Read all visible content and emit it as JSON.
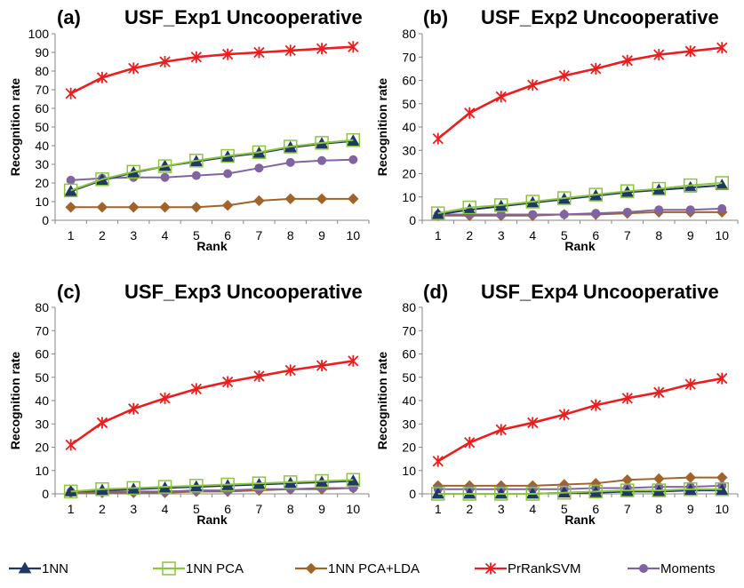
{
  "colors": {
    "1NN": "#1f3864",
    "1NN PCA": "#8cc63f",
    "1NN PCA+LDA": "#a0642a",
    "PrRankSVM": "#ee1c1c",
    "Moments": "#8064a2"
  },
  "legend": [
    {
      "name": "1NN",
      "marker": "triangle"
    },
    {
      "name": "1NN PCA",
      "marker": "square-open"
    },
    {
      "name": "1NN PCA+LDA",
      "marker": "diamond"
    },
    {
      "name": "PrRankSVM",
      "marker": "star"
    },
    {
      "name": "Moments",
      "marker": "circle"
    }
  ],
  "chart_data": [
    {
      "type": "line",
      "panel_label": "(a)",
      "title": "USF_Exp1 Uncooperative",
      "xlabel": "Rank",
      "ylabel": "Recognition rate",
      "x": [
        1,
        2,
        3,
        4,
        5,
        6,
        7,
        8,
        9,
        10
      ],
      "ylim": [
        0,
        100
      ],
      "yticks": [
        0,
        10,
        20,
        30,
        40,
        50,
        60,
        70,
        80,
        90,
        100
      ],
      "series": [
        {
          "name": "1NN",
          "values": [
            15.5,
            21.5,
            25.5,
            29,
            31.5,
            34,
            36,
            39,
            41,
            42.5
          ]
        },
        {
          "name": "1NN PCA",
          "values": [
            16,
            22,
            26,
            29,
            32,
            34.5,
            36.5,
            39.5,
            41.5,
            43
          ]
        },
        {
          "name": "1NN PCA+LDA",
          "values": [
            7,
            7,
            7,
            7,
            7,
            8,
            10.5,
            11.5,
            11.5,
            11.5
          ]
        },
        {
          "name": "PrRankSVM",
          "values": [
            68,
            76.5,
            81.5,
            85,
            87.5,
            89,
            90,
            91,
            92,
            93
          ]
        },
        {
          "name": "Moments",
          "values": [
            21.5,
            22.5,
            23,
            23,
            24,
            25,
            28,
            31,
            32,
            32.5
          ]
        }
      ]
    },
    {
      "type": "line",
      "panel_label": "(b)",
      "title": "USF_Exp2 Uncooperative",
      "xlabel": "Rank",
      "ylabel": "Recognition rate",
      "x": [
        1,
        2,
        3,
        4,
        5,
        6,
        7,
        8,
        9,
        10
      ],
      "ylim": [
        0,
        80
      ],
      "yticks": [
        0,
        10,
        20,
        30,
        40,
        50,
        60,
        70,
        80
      ],
      "series": [
        {
          "name": "1NN",
          "values": [
            2.5,
            4.5,
            6,
            7.5,
            9,
            10.5,
            12,
            13,
            14,
            15
          ]
        },
        {
          "name": "1NN PCA",
          "values": [
            3,
            5.5,
            6.5,
            8,
            9.5,
            11,
            12.5,
            13.5,
            15,
            16
          ]
        },
        {
          "name": "1NN PCA+LDA",
          "values": [
            2,
            2,
            2,
            2,
            2.5,
            2.5,
            3,
            3.5,
            3.5,
            3.5
          ]
        },
        {
          "name": "PrRankSVM",
          "values": [
            35,
            46,
            53,
            58,
            62,
            65,
            68.5,
            71,
            72.5,
            74
          ]
        },
        {
          "name": "Moments",
          "values": [
            2.5,
            2.5,
            2.5,
            2.5,
            2.5,
            3,
            3.5,
            4.5,
            4.5,
            5
          ]
        }
      ]
    },
    {
      "type": "line",
      "panel_label": "(c)",
      "title": "USF_Exp3 Uncooperative",
      "xlabel": "Rank",
      "ylabel": "Recognition rate",
      "x": [
        1,
        2,
        3,
        4,
        5,
        6,
        7,
        8,
        9,
        10
      ],
      "ylim": [
        0,
        80
      ],
      "yticks": [
        0,
        10,
        20,
        30,
        40,
        50,
        60,
        70,
        80
      ],
      "series": [
        {
          "name": "1NN",
          "values": [
            1,
            1.5,
            2,
            2.5,
            3,
            3.5,
            4,
            4.5,
            5,
            5.5
          ]
        },
        {
          "name": "1NN PCA",
          "values": [
            1,
            2,
            2.5,
            3,
            3.5,
            4,
            4.5,
            5,
            5.5,
            6
          ]
        },
        {
          "name": "1NN PCA+LDA",
          "values": [
            0.5,
            0.5,
            0.5,
            0.5,
            1,
            1,
            1.5,
            2,
            2,
            2.5
          ]
        },
        {
          "name": "PrRankSVM",
          "values": [
            21,
            30.5,
            36.5,
            41,
            45,
            48,
            50.5,
            53,
            55,
            57
          ]
        },
        {
          "name": "Moments",
          "values": [
            1,
            1,
            1,
            1,
            1.5,
            1.5,
            2,
            2,
            2.5,
            2.5
          ]
        }
      ]
    },
    {
      "type": "line",
      "panel_label": "(d)",
      "title": "USF_Exp4 Uncooperative",
      "xlabel": "Rank",
      "ylabel": "Recognition rate",
      "x": [
        1,
        2,
        3,
        4,
        5,
        6,
        7,
        8,
        9,
        10
      ],
      "ylim": [
        0,
        80
      ],
      "yticks": [
        0,
        10,
        20,
        30,
        40,
        50,
        60,
        70,
        80
      ],
      "series": [
        {
          "name": "1NN",
          "values": [
            0,
            0,
            0,
            0,
            0.5,
            0.5,
            1,
            1,
            1.5,
            1.5
          ]
        },
        {
          "name": "1NN PCA",
          "values": [
            0,
            0,
            0,
            0,
            0.5,
            1,
            1.5,
            1.5,
            2,
            2
          ]
        },
        {
          "name": "1NN PCA+LDA",
          "values": [
            3.5,
            3.5,
            3.5,
            3.5,
            4,
            4.5,
            6,
            6.5,
            7,
            7
          ]
        },
        {
          "name": "PrRankSVM",
          "values": [
            14,
            22,
            27.5,
            30.5,
            34,
            38,
            41,
            43.5,
            47,
            49.5
          ]
        },
        {
          "name": "Moments",
          "values": [
            2,
            2,
            2,
            2,
            2,
            2.5,
            2.5,
            3,
            3,
            3.5
          ]
        }
      ]
    }
  ]
}
